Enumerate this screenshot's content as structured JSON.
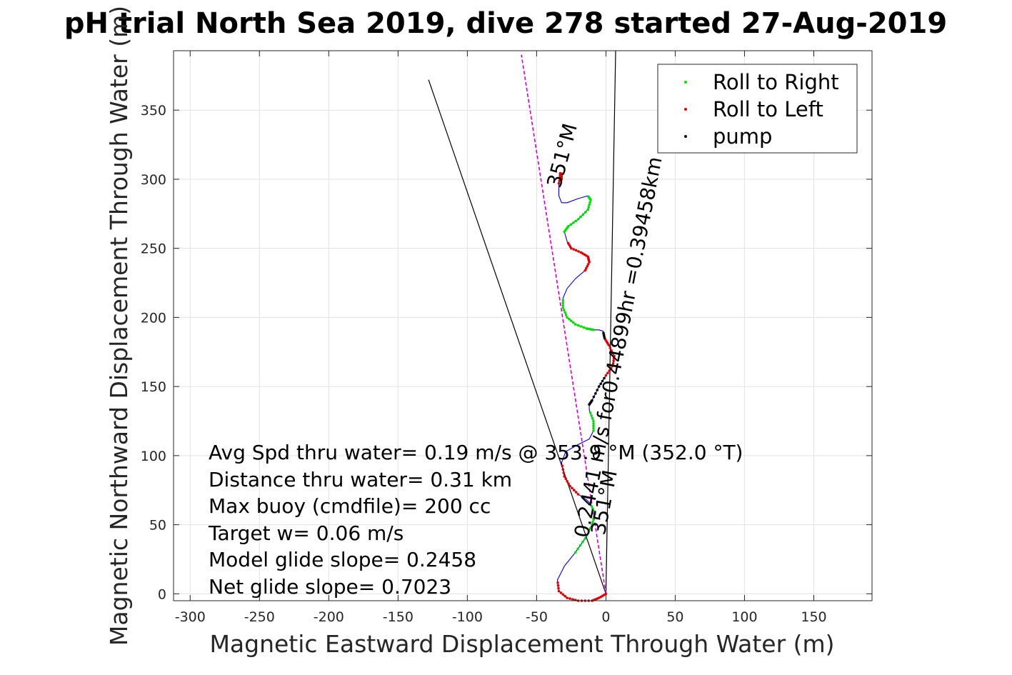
{
  "chart_data": {
    "type": "scatter",
    "title": "pH trial North Sea 2019, dive 278 started 27-Aug-2019",
    "xlabel": "Magnetic Eastward Displacement Through Water (m)",
    "ylabel": "Magnetic Northward Displacement Through Water (m)",
    "xlim": [
      -312,
      192
    ],
    "ylim": [
      -5,
      393
    ],
    "xticks": [
      -300,
      -250,
      -200,
      -150,
      -100,
      -50,
      0,
      50,
      100,
      150
    ],
    "yticks": [
      0,
      50,
      100,
      150,
      200,
      250,
      300,
      350
    ],
    "grid": true,
    "legend": {
      "placement": "top-right",
      "entries": [
        {
          "label": "Roll to Right",
          "color": "#00dd00"
        },
        {
          "label": "Roll to Left",
          "color": "#dd0000"
        },
        {
          "label": "pump",
          "color": "#000000"
        }
      ]
    },
    "track": {
      "color": "#0000cc",
      "x": [
        0,
        -5,
        -10,
        -20,
        -28,
        -34,
        -35,
        -30,
        -22,
        -15,
        -10,
        -8,
        -11,
        -14,
        -20,
        -26,
        -30,
        -32,
        -29,
        -20,
        -12,
        -9,
        -9,
        -12,
        -12,
        -10,
        -5,
        0,
        5,
        6,
        2,
        -1,
        -2,
        -5,
        -9,
        -14,
        -22,
        -28,
        -31,
        -31,
        -28,
        -22,
        -15,
        -12,
        -13,
        -18,
        -25,
        -28,
        -30,
        -27,
        -20,
        -13,
        -11,
        -13,
        -20,
        -28,
        -32,
        -34,
        -34,
        -32,
        -32,
        -33,
        -33
      ],
      "y": [
        0,
        -3,
        -5,
        -5,
        -3,
        2,
        10,
        20,
        30,
        40,
        50,
        58,
        65,
        68,
        72,
        78,
        85,
        95,
        103,
        108,
        112,
        118,
        125,
        133,
        137,
        140,
        150,
        158,
        165,
        172,
        180,
        185,
        190,
        191,
        191,
        192,
        195,
        200,
        207,
        214,
        221,
        228,
        234,
        240,
        244,
        247,
        250,
        255,
        262,
        266,
        271,
        278,
        285,
        288,
        286,
        283,
        283,
        288,
        297,
        304,
        300,
        302,
        305
      ]
    },
    "lines": [
      {
        "x": [
          0,
          -128
        ],
        "y": [
          0,
          372
        ],
        "color": "#000000"
      },
      {
        "x": [
          0,
          7
        ],
        "y": [
          0,
          393
        ],
        "color": "#000000"
      },
      {
        "x": [
          0,
          -61
        ],
        "y": [
          0,
          390
        ],
        "color": "#cc00cc",
        "dashed": true
      }
    ],
    "annotations": [
      {
        "text": "351°M",
        "x": -33,
        "y": 293,
        "rotation": -75
      },
      {
        "text": "0.2441 m/s for0.44899hr =0.39458km",
        "x": -13,
        "y": 40,
        "rotation": -79
      },
      {
        "text": "351°M",
        "x": -1,
        "y": 42,
        "rotation": -79
      }
    ],
    "stats": [
      "Avg Spd thru water=  0.19 m/s @ 353.9 °M (352.0 °T)",
      "Distance thru water=  0.31 km",
      "Max buoy (cmdfile)= 200 cc",
      "Target w= 0.06 m/s",
      "Model glide slope= 0.2458",
      "Net glide slope= 0.7023"
    ]
  }
}
